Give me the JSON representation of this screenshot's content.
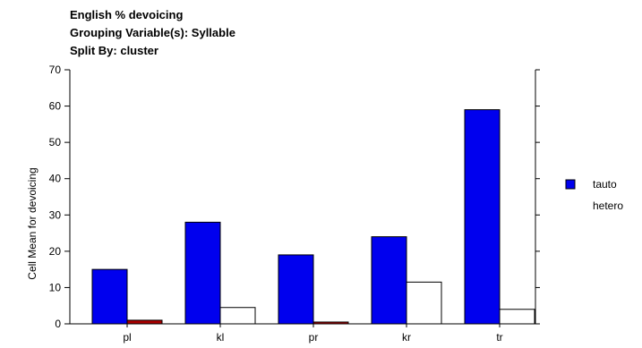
{
  "chart_data": {
    "type": "bar",
    "title_lines": [
      "English % devoicing",
      "Grouping Variable(s): Syllable",
      "Split By: cluster"
    ],
    "ylabel": "Cell Mean for devoicing",
    "xlabel": "",
    "ylim": [
      0,
      70
    ],
    "yticks": [
      0,
      10,
      20,
      30,
      40,
      50,
      60,
      70
    ],
    "categories": [
      "pl",
      "kl",
      "pr",
      "kr",
      "tr"
    ],
    "series": [
      {
        "name": "tauto",
        "values": [
          15,
          28,
          19,
          24,
          59
        ],
        "color": "#0000ee",
        "border": "#000000"
      },
      {
        "name": "hetero",
        "values": [
          1,
          4.5,
          0.5,
          11.5,
          4
        ],
        "color": "#ffffff",
        "border": "#000000",
        "small_value_color": "#aa0000"
      }
    ],
    "legend_position": "right",
    "grid": false
  }
}
